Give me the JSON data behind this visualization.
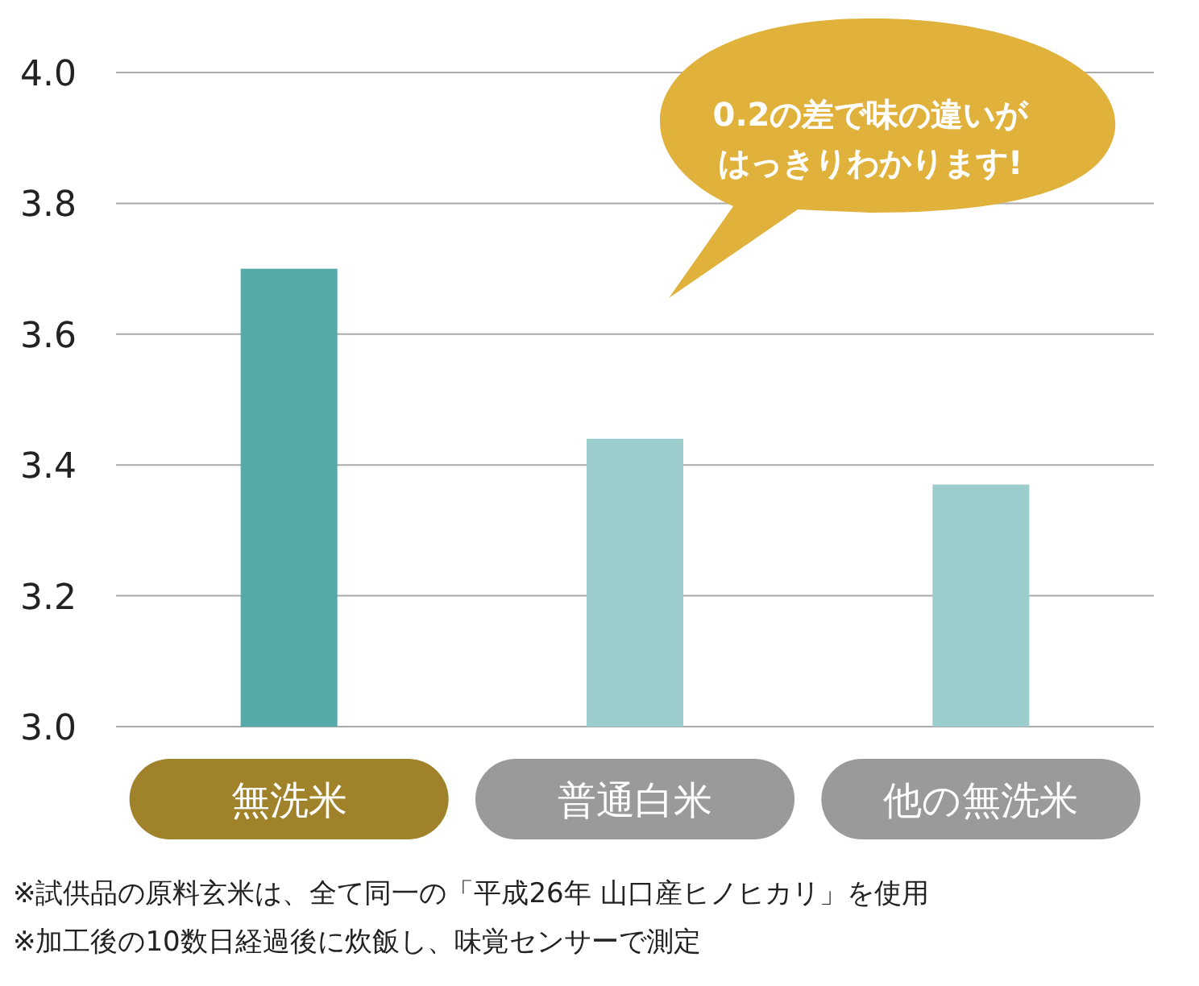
{
  "chart_data": {
    "type": "bar",
    "categories": [
      "無洗米",
      "普通白米",
      "他の無洗米"
    ],
    "values": [
      3.7,
      3.44,
      3.37
    ],
    "colors": [
      "#55aaa8",
      "#9ccdcd",
      "#9ccdcd"
    ],
    "ylim": [
      3.0,
      4.0
    ],
    "yticks": [
      {
        "value": 3,
        "label": "3.0"
      },
      {
        "value": 3.2,
        "label": "3.2"
      },
      {
        "value": 3.4,
        "label": "3.4"
      },
      {
        "value": 3.6,
        "label": "3.6"
      },
      {
        "value": 3.8,
        "label": "3.8"
      },
      {
        "value": 4,
        "label": "4.0"
      }
    ],
    "grid": "y",
    "annotations": [
      "0.2の差で味の違いが",
      "はっきりわかります!",
      "※試供品の原料玄米は、全て同一の「平成26年 山口産ヒノヒカリ」を使用",
      "※加工後の10数日経過後に炊飯し、味覚センサーで測定"
    ]
  }
}
